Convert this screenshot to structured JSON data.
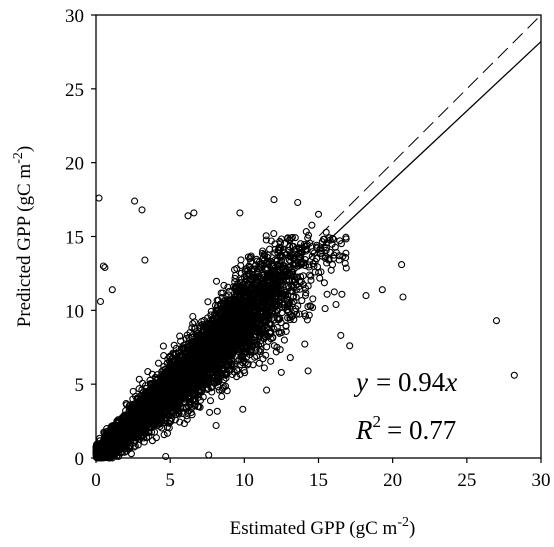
{
  "chart_data": {
    "type": "scatter",
    "title": "",
    "xlabel": "Estimated GPP (gC m",
    "xlabel_sup": "-2",
    "xlabel_end": ")",
    "ylabel": "Predicted GPP (gC m",
    "ylabel_sup": "-2",
    "ylabel_end": ")",
    "xlim": [
      0,
      30
    ],
    "ylim": [
      0,
      30
    ],
    "xticks": [
      0,
      5,
      10,
      15,
      20,
      25,
      30
    ],
    "yticks": [
      0,
      5,
      10,
      15,
      20,
      25,
      30
    ],
    "grid": false,
    "legend": "none",
    "fit_line": {
      "slope": 0.94,
      "style": "solid"
    },
    "reference_line": {
      "slope": 1.0,
      "style": "dashed"
    },
    "annotations": {
      "equation_lhs": "y",
      "equation_rhs": "= 0.94",
      "equation_var": "x",
      "r2_symbol": "R",
      "r2_sup": "2",
      "r2_rhs": "= 0.77"
    },
    "points_note": "Dense cloud of several thousand points; representative outliers listed, bulk generated along fit line",
    "points_estimated_count": 6000,
    "outliers": [
      [
        0.2,
        17.6
      ],
      [
        2.6,
        17.4
      ],
      [
        3.1,
        16.8
      ],
      [
        0.5,
        13.0
      ],
      [
        0.6,
        12.9
      ],
      [
        1.1,
        11.4
      ],
      [
        0.3,
        10.6
      ],
      [
        27.0,
        9.3
      ],
      [
        28.2,
        5.6
      ],
      [
        20.6,
        13.1
      ],
      [
        20.7,
        10.9
      ],
      [
        19.3,
        11.4
      ],
      [
        17.1,
        7.6
      ],
      [
        16.5,
        8.3
      ],
      [
        18.2,
        11.0
      ],
      [
        3.3,
        13.4
      ],
      [
        12.0,
        17.5
      ],
      [
        13.6,
        17.3
      ],
      [
        9.7,
        16.6
      ],
      [
        6.2,
        16.4
      ],
      [
        6.6,
        16.6
      ],
      [
        15.0,
        16.5
      ],
      [
        7.6,
        0.2
      ],
      [
        4.7,
        0.1
      ],
      [
        12.2,
        7.5
      ],
      [
        13.1,
        6.8
      ],
      [
        14.3,
        5.9
      ],
      [
        11.5,
        4.6
      ],
      [
        9.9,
        3.3
      ],
      [
        8.1,
        2.2
      ]
    ]
  }
}
